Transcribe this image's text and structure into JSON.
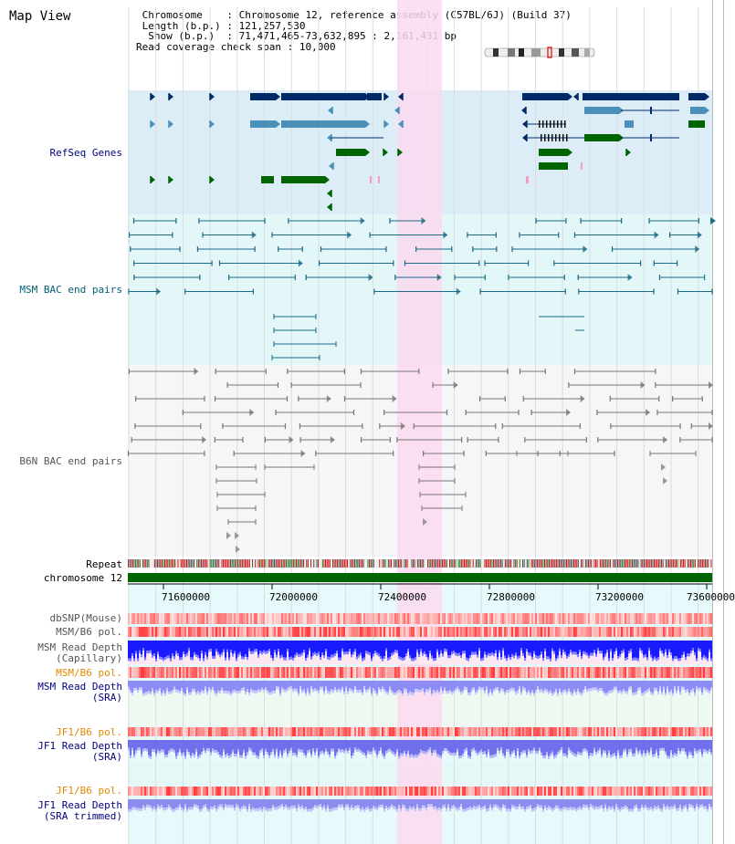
{
  "app": {
    "title": "Map View"
  },
  "info": {
    "rows": [
      {
        "label": "Chromosome",
        "indent": 1,
        "sep": ":",
        "value": "Chromosome 12, reference assembly (C57BL/6J) (Build 37)"
      },
      {
        "label": "Length (b.p.)",
        "indent": 1,
        "sep": ":",
        "value": "121,257,530"
      },
      {
        "label": "Show (b.p.)",
        "indent": 2,
        "sep": ":",
        "value": "71,471,465-73,632,895 : 2,161,431 bp"
      },
      {
        "label": "Read coverage check span",
        "indent": 0,
        "sep": ":",
        "value": "10,000"
      }
    ]
  },
  "tracks": {
    "refseq": "RefSeq Genes",
    "msm_bac": "MSM BAC end pairs",
    "b6n_bac": "B6N BAC end pairs",
    "repeat": "Repeat",
    "chromosome": "chromosome 12",
    "dbsnp": "dbSNP(Mouse)",
    "msm_b6_pol": "MSM/B6 pol.",
    "msm_depth_cap_1": "MSM Read Depth",
    "msm_depth_cap_2": "(Capillary)",
    "msm_b6_pol_2": "MSM/B6 pol.",
    "msm_depth_sra_1": "MSM Read Depth",
    "msm_depth_sra_2": "(SRA)",
    "jf1_b6_pol": "JF1/B6 pol.",
    "jf1_depth_sra_1": "JF1 Read Depth",
    "jf1_depth_sra_2": "(SRA)",
    "jf1_b6_pol_2": "JF1/B6 pol.",
    "jf1_depth_trim_1": "JF1 Read Depth",
    "jf1_depth_trim_2": "(SRA trimmed)"
  },
  "axis": {
    "ticks": [
      "71600000",
      "72000000",
      "72400000",
      "72800000",
      "73200000",
      "73600000"
    ]
  },
  "colors": {
    "refseq_bg": "#dcedf8",
    "msm_bg": "#e3f6f8",
    "b6n_bg": "#f4f6f7",
    "highlight": "#fbd9f0",
    "chromosome": "#006400",
    "gene_dark": "#002b66",
    "gene_mid": "#4a90b8",
    "gene_green": "#006400",
    "msm_pair": "#1b6a86",
    "b6n_pair": "#777777"
  }
}
